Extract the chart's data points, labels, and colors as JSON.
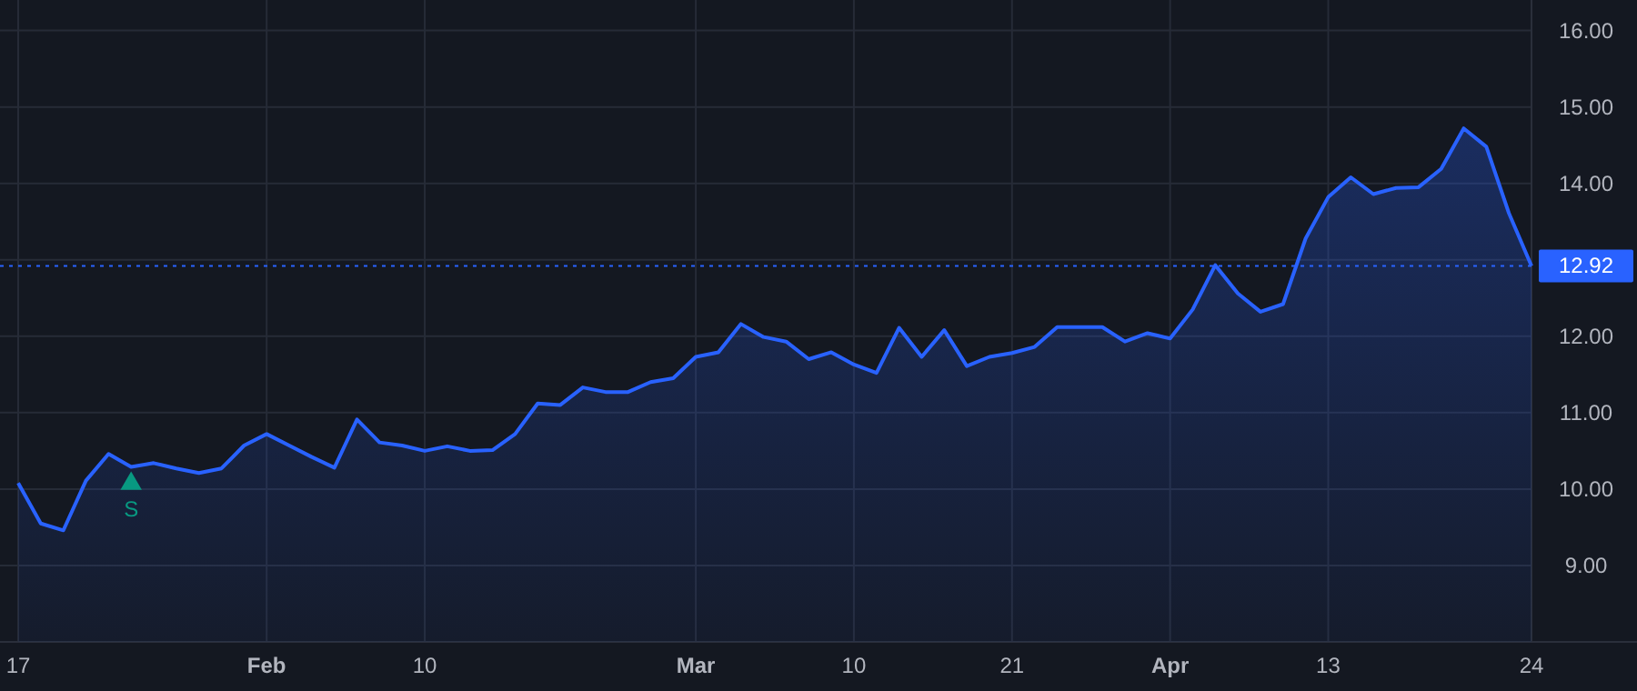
{
  "chart_data": {
    "type": "area",
    "categories": [
      "17",
      null,
      null,
      null,
      null,
      null,
      null,
      null,
      null,
      null,
      null,
      "Feb",
      null,
      null,
      null,
      null,
      null,
      null,
      "10",
      null,
      null,
      null,
      null,
      null,
      null,
      null,
      null,
      null,
      null,
      null,
      "Mar",
      null,
      null,
      null,
      null,
      null,
      null,
      "10",
      null,
      null,
      null,
      null,
      null,
      null,
      "21",
      null,
      null,
      null,
      null,
      null,
      null,
      "Apr",
      null,
      null,
      null,
      null,
      null,
      null,
      "13",
      null,
      null,
      null,
      null,
      null,
      null,
      null,
      null,
      "24"
    ],
    "series": [
      {
        "color": "#2962ff",
        "values": [
          10.08,
          9.55,
          9.46,
          10.11,
          10.46,
          10.29,
          10.34,
          10.27,
          10.21,
          10.27,
          10.57,
          10.72,
          10.57,
          10.42,
          10.28,
          10.91,
          10.61,
          10.57,
          10.5,
          10.56,
          10.5,
          10.51,
          10.72,
          11.12,
          11.1,
          11.33,
          11.27,
          11.27,
          11.4,
          11.45,
          11.73,
          11.79,
          12.16,
          11.99,
          11.93,
          11.7,
          11.79,
          11.63,
          11.52,
          12.11,
          11.73,
          12.08,
          11.61,
          11.73,
          11.78,
          11.86,
          12.12,
          12.12,
          12.12,
          11.93,
          12.04,
          11.97,
          12.35,
          12.93,
          12.56,
          12.32,
          12.42,
          13.28,
          13.82,
          14.08,
          13.86,
          13.94,
          13.95,
          14.19,
          14.72,
          14.48,
          13.61,
          12.92
        ]
      },
      {
        "type": "scatter",
        "color": "#089981",
        "marker": "triangle",
        "values": [
          null,
          null,
          null,
          null,
          null,
          10.07,
          null,
          null,
          null,
          null,
          null,
          null,
          null,
          null,
          null,
          null,
          null,
          null,
          null,
          null,
          null,
          null,
          null,
          null,
          null,
          null,
          null,
          null,
          null,
          null,
          null,
          null,
          null,
          null,
          null,
          null,
          null,
          null,
          null,
          null,
          null,
          null,
          null,
          null,
          null,
          null,
          null,
          null,
          null,
          null,
          null,
          null,
          null,
          null,
          null,
          null,
          null,
          null,
          null,
          null,
          null,
          null,
          null,
          null,
          null,
          null,
          null,
          null
        ]
      }
    ],
    "annotations": [
      "S"
    ],
    "ref_lines": [
      {
        "axis": "y",
        "value": 12.92,
        "label": "12.92",
        "color": "#2962ff",
        "line_style": "dotted"
      }
    ],
    "ylim": [
      8,
      16.4
    ],
    "yticks": [
      {
        "value": 9,
        "label": "9.00"
      },
      {
        "value": 10,
        "label": "10.00"
      },
      {
        "value": 11,
        "label": "11.00"
      },
      {
        "value": 12,
        "label": "12.00"
      },
      {
        "value": 13,
        "label": null
      },
      {
        "value": 14,
        "label": "14.00"
      },
      {
        "value": 15,
        "label": "15.00"
      },
      {
        "value": 16,
        "label": "16.00"
      }
    ],
    "grid": true
  }
}
